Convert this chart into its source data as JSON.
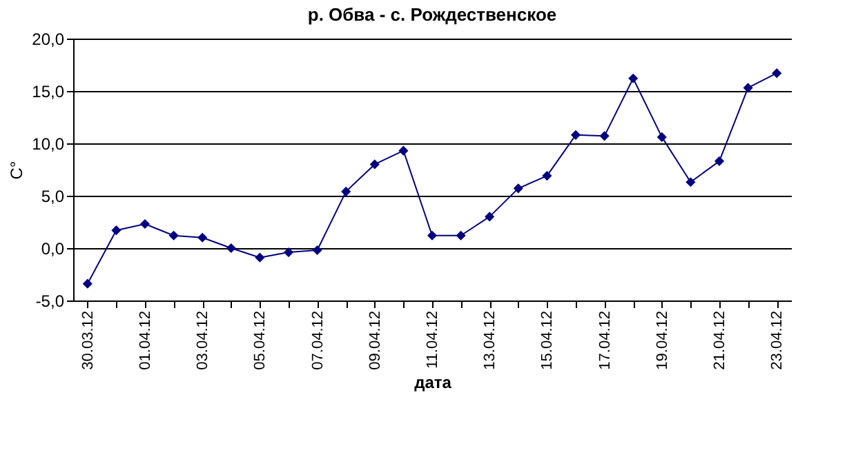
{
  "chart_data": {
    "type": "line",
    "title": "р. Обва - с. Рождественское",
    "xlabel": "дата",
    "ylabel": "C°",
    "categories": [
      "30.03.12",
      null,
      "01.04.12",
      null,
      "03.04.12",
      null,
      "05.04.12",
      null,
      "07.04.12",
      null,
      "09.04.12",
      null,
      "11.04.12",
      null,
      "13.04.12",
      null,
      "15.04.12",
      null,
      "17.04.12",
      null,
      "19.04.12",
      null,
      "21.04.12",
      null,
      "23.04.12"
    ],
    "series": [
      {
        "color": "#000080",
        "values": [
          -3.4,
          1.7,
          2.3,
          1.2,
          1.0,
          0.0,
          -0.9,
          -0.4,
          -0.2,
          5.4,
          8.0,
          9.3,
          1.2,
          1.2,
          3.0,
          5.7,
          6.9,
          10.8,
          10.7,
          16.2,
          10.6,
          6.3,
          8.3,
          15.3,
          16.7
        ]
      }
    ],
    "ylim": [
      -5,
      20
    ],
    "yticks": [
      {
        "value": -5,
        "label": "-5,0"
      },
      {
        "value": 0,
        "label": "0,0"
      },
      {
        "value": 5,
        "label": "5,0"
      },
      {
        "value": 10,
        "label": "10,0"
      },
      {
        "value": 15,
        "label": "15,0"
      },
      {
        "value": 20,
        "label": "20,0"
      }
    ],
    "grid": "y",
    "legend": false,
    "marker": "diamond",
    "line_style": "solid"
  }
}
